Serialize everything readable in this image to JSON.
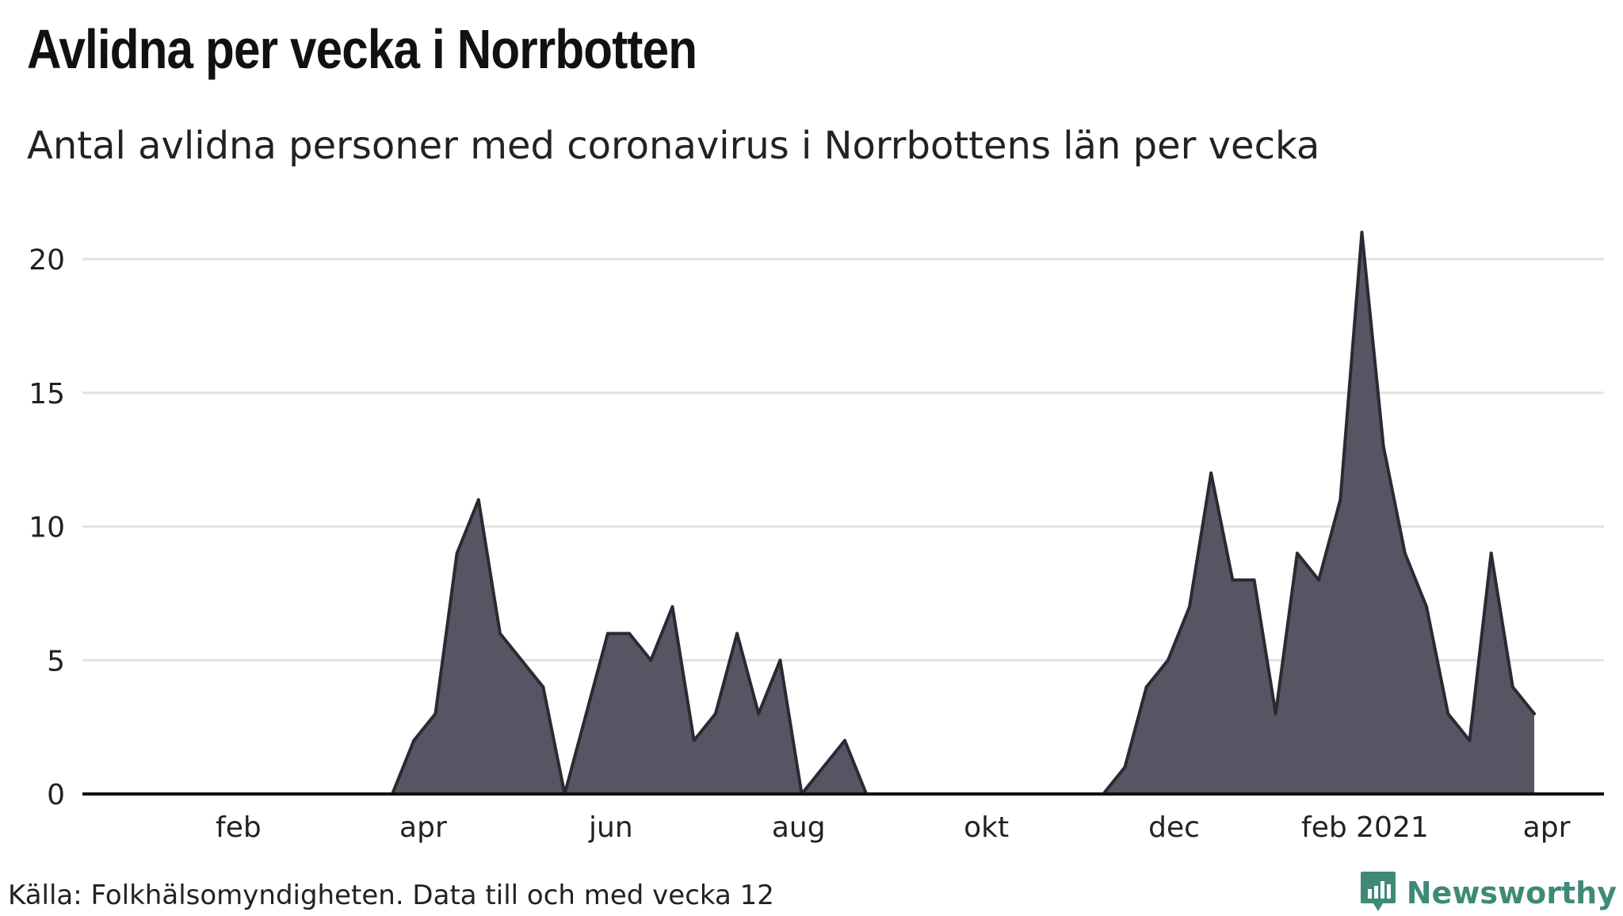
{
  "title": "Avlidna per vecka i Norrbotten",
  "subtitle": "Antal avlidna personer med coronavirus i Norrbottens län per vecka",
  "source": "Källa: Folkhälsomyndigheten. Data till och med vecka 12",
  "logo": {
    "text": "Newsworthy",
    "icon": "bar-chart-logo-icon"
  },
  "colors": {
    "area": "#575563",
    "line": "#2b2a33",
    "grid": "#e2e2e2",
    "logo": "#3e8a77"
  },
  "chart_data": {
    "type": "area",
    "ylim": [
      0,
      21
    ],
    "y_ticks": [
      0,
      5,
      10,
      15,
      20
    ],
    "x_ticks": [
      {
        "label": "feb",
        "date": "2020-02-01"
      },
      {
        "label": "apr",
        "date": "2020-04-01"
      },
      {
        "label": "jun",
        "date": "2020-06-01"
      },
      {
        "label": "aug",
        "date": "2020-08-01"
      },
      {
        "label": "okt",
        "date": "2020-10-01"
      },
      {
        "label": "dec",
        "date": "2020-12-01"
      },
      {
        "label": "feb 2021",
        "date": "2021-02-01"
      },
      {
        "label": "apr",
        "date": "2021-04-01"
      }
    ],
    "grid": true,
    "series": [
      {
        "x": [
          "2020-01-05",
          "2020-01-12",
          "2020-01-19",
          "2020-01-26",
          "2020-02-02",
          "2020-02-09",
          "2020-02-16",
          "2020-02-23",
          "2020-03-01",
          "2020-03-08",
          "2020-03-15",
          "2020-03-22",
          "2020-03-29",
          "2020-04-05",
          "2020-04-12",
          "2020-04-19",
          "2020-04-26",
          "2020-05-03",
          "2020-05-10",
          "2020-05-17",
          "2020-05-24",
          "2020-05-31",
          "2020-06-07",
          "2020-06-14",
          "2020-06-21",
          "2020-06-28",
          "2020-07-05",
          "2020-07-12",
          "2020-07-19",
          "2020-07-26",
          "2020-08-02",
          "2020-08-09",
          "2020-08-16",
          "2020-08-23",
          "2020-08-30",
          "2020-09-06",
          "2020-09-13",
          "2020-09-20",
          "2020-09-27",
          "2020-10-04",
          "2020-10-11",
          "2020-10-18",
          "2020-10-25",
          "2020-11-01",
          "2020-11-08",
          "2020-11-15",
          "2020-11-22",
          "2020-11-29",
          "2020-12-06",
          "2020-12-13",
          "2020-12-20",
          "2020-12-27",
          "2021-01-03",
          "2021-01-10",
          "2021-01-17",
          "2021-01-24",
          "2021-01-31",
          "2021-02-07",
          "2021-02-14",
          "2021-02-21",
          "2021-02-28",
          "2021-03-07",
          "2021-03-14",
          "2021-03-21",
          "2021-03-28"
        ],
        "values": [
          0,
          0,
          0,
          0,
          0,
          0,
          0,
          0,
          0,
          0,
          0,
          0,
          2,
          3,
          9,
          11,
          6,
          5,
          4,
          0,
          3,
          6,
          6,
          5,
          7,
          2,
          3,
          6,
          3,
          5,
          0,
          1,
          2,
          0,
          0,
          0,
          0,
          0,
          0,
          0,
          0,
          0,
          0,
          0,
          0,
          1,
          4,
          5,
          7,
          12,
          8,
          8,
          3,
          9,
          8,
          11,
          21,
          13,
          9,
          7,
          3,
          2,
          9,
          4,
          3
        ]
      }
    ]
  }
}
